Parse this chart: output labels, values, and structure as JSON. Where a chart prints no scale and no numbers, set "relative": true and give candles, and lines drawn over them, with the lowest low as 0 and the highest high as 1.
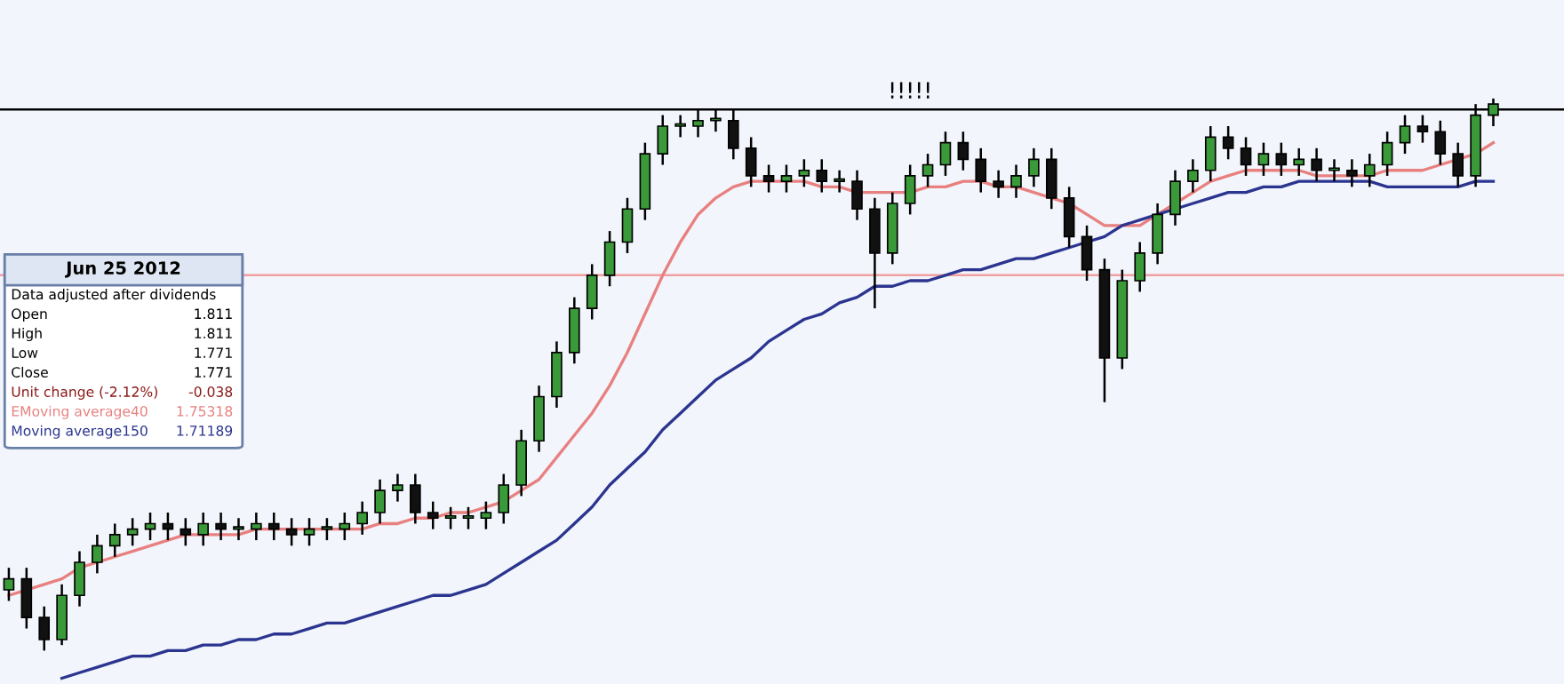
{
  "chart_data": {
    "type": "candlestick",
    "relative": true,
    "categories": [
      null,
      null,
      null,
      null,
      null,
      null,
      null,
      null,
      null,
      null,
      null,
      null,
      null,
      null,
      null,
      null,
      null,
      null,
      null,
      null,
      null,
      null,
      null,
      null,
      null,
      null,
      null,
      null,
      null,
      null,
      null,
      null,
      null,
      null,
      null,
      null,
      null,
      null,
      null,
      null,
      null,
      null,
      null,
      null,
      null,
      null,
      null,
      null,
      null,
      null,
      null,
      null,
      null,
      null,
      null,
      null,
      null,
      null,
      null,
      null,
      null,
      null,
      null,
      null,
      null,
      null,
      null,
      null,
      null,
      null,
      null,
      null,
      null,
      null,
      null,
      null,
      null,
      null,
      null,
      null,
      null,
      null,
      null,
      null,
      null
    ],
    "ohlc": [
      [
        0.11,
        0.15,
        0.09,
        0.13
      ],
      [
        0.13,
        0.15,
        0.04,
        0.06
      ],
      [
        0.06,
        0.08,
        0.0,
        0.02
      ],
      [
        0.02,
        0.12,
        0.01,
        0.1
      ],
      [
        0.1,
        0.18,
        0.08,
        0.16
      ],
      [
        0.16,
        0.21,
        0.14,
        0.19
      ],
      [
        0.19,
        0.23,
        0.17,
        0.21
      ],
      [
        0.21,
        0.24,
        0.19,
        0.22
      ],
      [
        0.22,
        0.25,
        0.2,
        0.23
      ],
      [
        0.23,
        0.25,
        0.2,
        0.22
      ],
      [
        0.22,
        0.24,
        0.19,
        0.21
      ],
      [
        0.21,
        0.25,
        0.19,
        0.23
      ],
      [
        0.23,
        0.25,
        0.2,
        0.22
      ],
      [
        0.22,
        0.24,
        0.2,
        0.22
      ],
      [
        0.22,
        0.25,
        0.2,
        0.23
      ],
      [
        0.23,
        0.25,
        0.2,
        0.22
      ],
      [
        0.22,
        0.24,
        0.19,
        0.21
      ],
      [
        0.21,
        0.24,
        0.19,
        0.22
      ],
      [
        0.22,
        0.24,
        0.2,
        0.22
      ],
      [
        0.22,
        0.25,
        0.2,
        0.23
      ],
      [
        0.23,
        0.27,
        0.21,
        0.25
      ],
      [
        0.25,
        0.31,
        0.23,
        0.29
      ],
      [
        0.29,
        0.32,
        0.27,
        0.3
      ],
      [
        0.3,
        0.32,
        0.23,
        0.25
      ],
      [
        0.25,
        0.27,
        0.22,
        0.24
      ],
      [
        0.24,
        0.26,
        0.22,
        0.24
      ],
      [
        0.24,
        0.26,
        0.22,
        0.24
      ],
      [
        0.24,
        0.27,
        0.22,
        0.25
      ],
      [
        0.25,
        0.32,
        0.23,
        0.3
      ],
      [
        0.3,
        0.4,
        0.28,
        0.38
      ],
      [
        0.38,
        0.48,
        0.36,
        0.46
      ],
      [
        0.46,
        0.56,
        0.44,
        0.54
      ],
      [
        0.54,
        0.64,
        0.52,
        0.62
      ],
      [
        0.62,
        0.7,
        0.6,
        0.68
      ],
      [
        0.68,
        0.76,
        0.66,
        0.74
      ],
      [
        0.74,
        0.82,
        0.72,
        0.8
      ],
      [
        0.8,
        0.92,
        0.78,
        0.9
      ],
      [
        0.9,
        0.97,
        0.88,
        0.95
      ],
      [
        0.95,
        0.97,
        0.93,
        0.95
      ],
      [
        0.95,
        0.98,
        0.93,
        0.96
      ],
      [
        0.96,
        0.98,
        0.94,
        0.96
      ],
      [
        0.96,
        0.98,
        0.89,
        0.91
      ],
      [
        0.91,
        0.93,
        0.84,
        0.86
      ],
      [
        0.86,
        0.88,
        0.83,
        0.85
      ],
      [
        0.85,
        0.88,
        0.83,
        0.86
      ],
      [
        0.86,
        0.89,
        0.84,
        0.87
      ],
      [
        0.87,
        0.89,
        0.83,
        0.85
      ],
      [
        0.85,
        0.87,
        0.83,
        0.85
      ],
      [
        0.85,
        0.87,
        0.78,
        0.8
      ],
      [
        0.8,
        0.82,
        0.62,
        0.72
      ],
      [
        0.72,
        0.83,
        0.7,
        0.81
      ],
      [
        0.81,
        0.88,
        0.79,
        0.86
      ],
      [
        0.86,
        0.9,
        0.84,
        0.88
      ],
      [
        0.88,
        0.94,
        0.86,
        0.92
      ],
      [
        0.92,
        0.94,
        0.87,
        0.89
      ],
      [
        0.89,
        0.91,
        0.83,
        0.85
      ],
      [
        0.85,
        0.87,
        0.82,
        0.84
      ],
      [
        0.84,
        0.88,
        0.82,
        0.86
      ],
      [
        0.86,
        0.91,
        0.84,
        0.89
      ],
      [
        0.89,
        0.91,
        0.8,
        0.82
      ],
      [
        0.82,
        0.84,
        0.73,
        0.75
      ],
      [
        0.75,
        0.77,
        0.67,
        0.69
      ],
      [
        0.69,
        0.71,
        0.45,
        0.53
      ],
      [
        0.53,
        0.69,
        0.51,
        0.67
      ],
      [
        0.67,
        0.74,
        0.65,
        0.72
      ],
      [
        0.72,
        0.81,
        0.7,
        0.79
      ],
      [
        0.79,
        0.87,
        0.77,
        0.85
      ],
      [
        0.85,
        0.89,
        0.83,
        0.87
      ],
      [
        0.87,
        0.95,
        0.85,
        0.93
      ],
      [
        0.93,
        0.95,
        0.89,
        0.91
      ],
      [
        0.91,
        0.93,
        0.86,
        0.88
      ],
      [
        0.88,
        0.92,
        0.86,
        0.9
      ],
      [
        0.9,
        0.92,
        0.86,
        0.88
      ],
      [
        0.88,
        0.91,
        0.86,
        0.89
      ],
      [
        0.89,
        0.91,
        0.85,
        0.87
      ],
      [
        0.87,
        0.89,
        0.85,
        0.87
      ],
      [
        0.87,
        0.89,
        0.84,
        0.86
      ],
      [
        0.86,
        0.9,
        0.84,
        0.88
      ],
      [
        0.88,
        0.94,
        0.86,
        0.92
      ],
      [
        0.92,
        0.97,
        0.9,
        0.95
      ],
      [
        0.95,
        0.97,
        0.92,
        0.94
      ],
      [
        0.94,
        0.96,
        0.88,
        0.9
      ],
      [
        0.9,
        0.92,
        0.84,
        0.86
      ],
      [
        0.86,
        0.99,
        0.84,
        0.97
      ],
      [
        0.97,
        1.0,
        0.95,
        0.99
      ]
    ],
    "series": [
      {
        "name": "EMoving average40",
        "type": "line",
        "color": "#e88080",
        "values": [
          0.1,
          0.11,
          0.12,
          0.13,
          0.15,
          0.16,
          0.17,
          0.18,
          0.19,
          0.2,
          0.21,
          0.21,
          0.21,
          0.21,
          0.22,
          0.22,
          0.22,
          0.22,
          0.22,
          0.22,
          0.22,
          0.23,
          0.23,
          0.24,
          0.24,
          0.25,
          0.25,
          0.26,
          0.27,
          0.29,
          0.31,
          0.35,
          0.39,
          0.43,
          0.48,
          0.54,
          0.61,
          0.68,
          0.74,
          0.79,
          0.82,
          0.84,
          0.85,
          0.85,
          0.85,
          0.85,
          0.84,
          0.84,
          0.83,
          0.83,
          0.83,
          0.83,
          0.84,
          0.84,
          0.85,
          0.85,
          0.84,
          0.84,
          0.83,
          0.82,
          0.81,
          0.79,
          0.77,
          0.77,
          0.77,
          0.79,
          0.81,
          0.83,
          0.85,
          0.86,
          0.87,
          0.87,
          0.87,
          0.87,
          0.86,
          0.86,
          0.86,
          0.86,
          0.87,
          0.87,
          0.87,
          0.88,
          0.89,
          0.9,
          0.92
        ]
      },
      {
        "name": "Moving average150",
        "type": "line",
        "color": "#2b3590",
        "values": [
          null,
          null,
          null,
          -0.05,
          -0.04,
          -0.03,
          -0.02,
          -0.01,
          -0.01,
          0.0,
          0.0,
          0.01,
          0.01,
          0.02,
          0.02,
          0.03,
          0.03,
          0.04,
          0.05,
          0.05,
          0.06,
          0.07,
          0.08,
          0.09,
          0.1,
          0.1,
          0.11,
          0.12,
          0.14,
          0.16,
          0.18,
          0.2,
          0.23,
          0.26,
          0.3,
          0.33,
          0.36,
          0.4,
          0.43,
          0.46,
          0.49,
          0.51,
          0.53,
          0.56,
          0.58,
          0.6,
          0.61,
          0.63,
          0.64,
          0.66,
          0.66,
          0.67,
          0.67,
          0.68,
          0.69,
          0.69,
          0.7,
          0.71,
          0.71,
          0.72,
          0.73,
          0.74,
          0.75,
          0.77,
          0.78,
          0.79,
          0.8,
          0.81,
          0.82,
          0.83,
          0.83,
          0.84,
          0.84,
          0.85,
          0.85,
          0.85,
          0.85,
          0.85,
          0.84,
          0.84,
          0.84,
          0.84,
          0.84,
          0.85,
          0.85
        ]
      }
    ],
    "ref_lines": [
      {
        "axis": "y",
        "value": 0.98,
        "label": "!!!!!",
        "color": "#000000"
      },
      {
        "axis": "y",
        "value": 0.68,
        "color": "#f0a0a0"
      }
    ],
    "annotations": [
      "Jun 25 2012",
      "Data adjusted after dividends",
      "Open",
      "1.811",
      "High",
      "1.811",
      "Low",
      "1.771",
      "Close",
      "1.771",
      "Unit change (-2.12%)",
      "-0.038",
      "1.75318",
      "1.71189"
    ]
  }
}
